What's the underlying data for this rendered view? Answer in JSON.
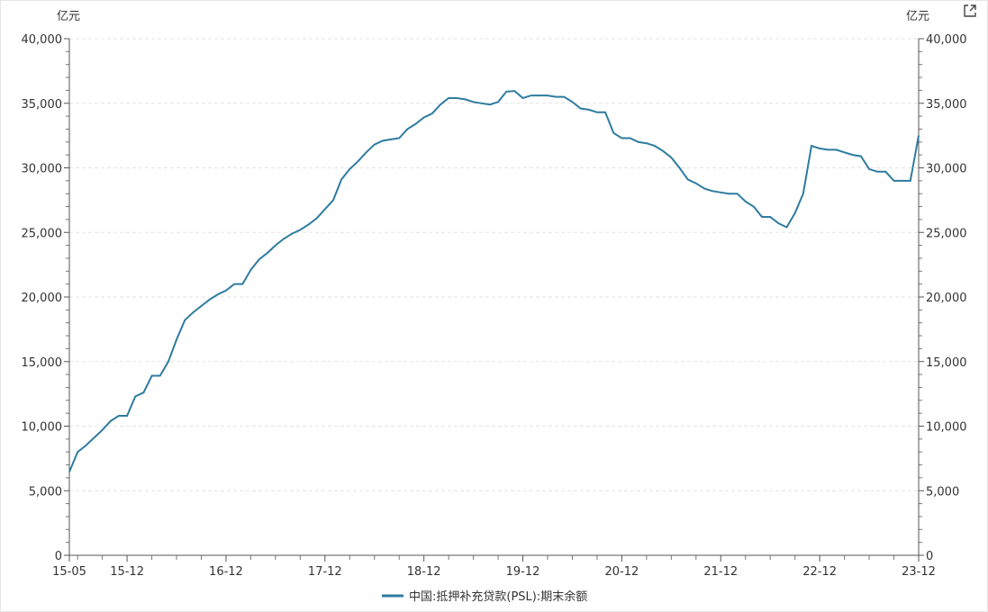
{
  "chart_data": {
    "type": "line",
    "unit_left": "亿元",
    "unit_right": "亿元",
    "ylim": [
      0,
      40000
    ],
    "yticks": [
      0,
      5000,
      10000,
      15000,
      20000,
      25000,
      30000,
      35000,
      40000
    ],
    "ytick_labels": [
      "0",
      "5,000",
      "10,000",
      "15,000",
      "20,000",
      "25,000",
      "30,000",
      "35,000",
      "40,000"
    ],
    "xtick_labels": [
      "15-05",
      "15-12",
      "16-12",
      "17-12",
      "18-12",
      "19-12",
      "20-12",
      "21-12",
      "22-12",
      "23-12"
    ],
    "x_start": "2015-05",
    "x_end": "2023-12",
    "grid": true,
    "legend_position": "bottom",
    "colors": {
      "line": "#2e7ba0"
    },
    "series": [
      {
        "name": "中国:抵押补充贷款(PSL):期末余额",
        "x": [
          "15-05",
          "15-06",
          "15-07",
          "15-08",
          "15-09",
          "15-10",
          "15-11",
          "15-12",
          "16-01",
          "16-02",
          "16-03",
          "16-04",
          "16-05",
          "16-06",
          "16-07",
          "16-08",
          "16-09",
          "16-10",
          "16-11",
          "16-12",
          "17-01",
          "17-02",
          "17-03",
          "17-04",
          "17-05",
          "17-06",
          "17-07",
          "17-08",
          "17-09",
          "17-10",
          "17-11",
          "17-12",
          "18-01",
          "18-02",
          "18-03",
          "18-04",
          "18-05",
          "18-06",
          "18-07",
          "18-08",
          "18-09",
          "18-10",
          "18-11",
          "18-12",
          "19-01",
          "19-02",
          "19-03",
          "19-04",
          "19-05",
          "19-06",
          "19-07",
          "19-08",
          "19-09",
          "19-10",
          "19-11",
          "19-12",
          "20-01",
          "20-02",
          "20-03",
          "20-04",
          "20-05",
          "20-06",
          "20-07",
          "20-08",
          "20-09",
          "20-10",
          "20-11",
          "20-12",
          "21-01",
          "21-02",
          "21-03",
          "21-04",
          "21-05",
          "21-06",
          "21-07",
          "21-08",
          "21-09",
          "21-10",
          "21-11",
          "21-12",
          "22-01",
          "22-02",
          "22-03",
          "22-04",
          "22-05",
          "22-06",
          "22-07",
          "22-08",
          "22-09",
          "22-10",
          "22-11",
          "22-12",
          "23-01",
          "23-02",
          "23-03",
          "23-04",
          "23-05",
          "23-06",
          "23-07",
          "23-08",
          "23-09",
          "23-10",
          "23-11",
          "23-12"
        ],
        "values": [
          6459,
          8000,
          8500,
          9100,
          9700,
          10400,
          10800,
          10800,
          12300,
          12600,
          13900,
          13900,
          15000,
          16700,
          18200,
          18800,
          19300,
          19800,
          20200,
          20500,
          21000,
          21000,
          22100,
          22900,
          23400,
          24000,
          24500,
          24900,
          25200,
          25600,
          26100,
          26800,
          27500,
          29100,
          29900,
          30500,
          31200,
          31800,
          32100,
          32200,
          32300,
          33000,
          33400,
          33900,
          34200,
          34900,
          35400,
          35400,
          35300,
          35100,
          35000,
          34900,
          35100,
          35900,
          35950,
          35400,
          35600,
          35600,
          35600,
          35500,
          35500,
          35100,
          34600,
          34500,
          34300,
          34300,
          32700,
          32300,
          32300,
          32000,
          31900,
          31700,
          31300,
          30800,
          30000,
          29100,
          28800,
          28400,
          28200,
          28100,
          28000,
          28000,
          27400,
          27000,
          26200,
          26200,
          25700,
          25400,
          26500,
          28000,
          31700,
          31500,
          31400,
          31400,
          31200,
          31000,
          30900,
          29900,
          29700,
          29700,
          29000,
          29000,
          29000,
          32500
        ]
      }
    ]
  },
  "toolbar": {
    "expand_icon": "external-link-icon"
  }
}
